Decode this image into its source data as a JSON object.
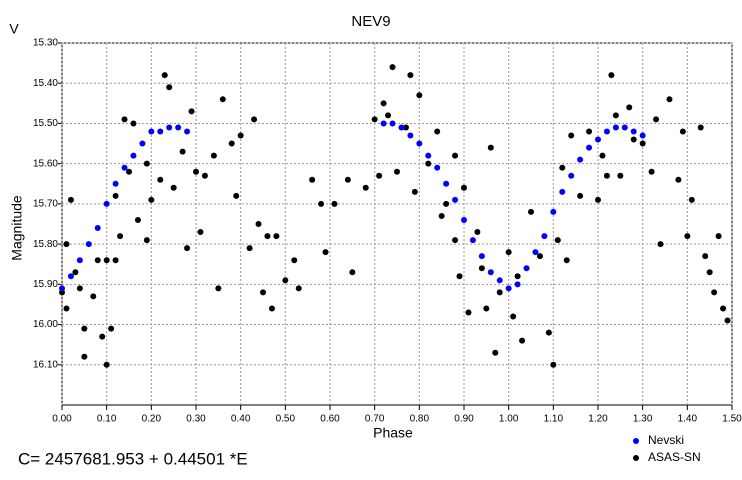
{
  "chart_data": {
    "type": "scatter",
    "title": "NEV9",
    "y_unit": "V",
    "xlabel": "Phase",
    "ylabel": "Magnitude",
    "footer": "C= 2457681.953 + 0.44501 *E",
    "xlim": [
      0,
      1.5
    ],
    "ylim": [
      15.3,
      16.2
    ],
    "y_inverted": true,
    "grid": true,
    "legend": "lower right",
    "xticks": [
      {
        "value": 0,
        "label": "0.00"
      },
      {
        "value": 0.1,
        "label": "0.10"
      },
      {
        "value": 0.2,
        "label": "0.20"
      },
      {
        "value": 0.3,
        "label": "0.30"
      },
      {
        "value": 0.4,
        "label": "0.40"
      },
      {
        "value": 0.5,
        "label": "0.50"
      },
      {
        "value": 0.6,
        "label": "0.60"
      },
      {
        "value": 0.7,
        "label": "0.70"
      },
      {
        "value": 0.8,
        "label": "0.80"
      },
      {
        "value": 0.9,
        "label": "0.90"
      },
      {
        "value": 1.0,
        "label": "1.00"
      },
      {
        "value": 1.1,
        "label": "1.10"
      },
      {
        "value": 1.2,
        "label": "1.20"
      },
      {
        "value": 1.3,
        "label": "1.30"
      },
      {
        "value": 1.4,
        "label": "1.40"
      },
      {
        "value": 1.5,
        "label": "1.50"
      }
    ],
    "yticks": [
      {
        "value": 15.3,
        "label": "15.30"
      },
      {
        "value": 15.4,
        "label": "15.40"
      },
      {
        "value": 15.5,
        "label": "15.50"
      },
      {
        "value": 15.6,
        "label": "15.60"
      },
      {
        "value": 15.7,
        "label": "15.70"
      },
      {
        "value": 15.8,
        "label": "15.80"
      },
      {
        "value": 15.9,
        "label": "15.90"
      },
      {
        "value": 16.0,
        "label": "16.00"
      },
      {
        "value": 16.1,
        "label": "16.10"
      }
    ],
    "series": [
      {
        "name": "Nevski",
        "color": "#0000ff",
        "x": [
          0.0,
          0.02,
          0.04,
          0.06,
          0.08,
          0.1,
          0.12,
          0.14,
          0.16,
          0.18,
          0.2,
          0.22,
          0.24,
          0.26,
          0.28,
          0.72,
          0.74,
          0.76,
          0.78,
          0.8,
          0.82,
          0.84,
          0.86,
          0.88,
          0.9,
          0.92,
          0.94,
          0.96,
          0.98,
          1.0,
          1.02,
          1.04,
          1.06,
          1.08,
          1.1,
          1.12,
          1.14,
          1.16,
          1.18,
          1.2,
          1.22,
          1.24,
          1.26,
          1.28,
          1.3
        ],
        "values": [
          15.91,
          15.88,
          15.84,
          15.8,
          15.76,
          15.7,
          15.65,
          15.61,
          15.58,
          15.55,
          15.52,
          15.52,
          15.51,
          15.51,
          15.52,
          15.5,
          15.5,
          15.51,
          15.53,
          15.55,
          15.58,
          15.61,
          15.65,
          15.69,
          15.74,
          15.79,
          15.83,
          15.87,
          15.89,
          15.91,
          15.9,
          15.86,
          15.82,
          15.78,
          15.72,
          15.67,
          15.63,
          15.59,
          15.56,
          15.54,
          15.52,
          15.51,
          15.51,
          15.52,
          15.53
        ]
      },
      {
        "name": "ASAS-SN",
        "color": "#000000",
        "x": [
          0.0,
          0.01,
          0.01,
          0.02,
          0.03,
          0.04,
          0.05,
          0.05,
          0.07,
          0.08,
          0.09,
          0.1,
          0.1,
          0.11,
          0.12,
          0.12,
          0.13,
          0.14,
          0.15,
          0.16,
          0.17,
          0.19,
          0.19,
          0.2,
          0.22,
          0.23,
          0.24,
          0.25,
          0.27,
          0.28,
          0.29,
          0.3,
          0.31,
          0.32,
          0.34,
          0.35,
          0.36,
          0.38,
          0.39,
          0.4,
          0.42,
          0.43,
          0.44,
          0.45,
          0.46,
          0.47,
          0.48,
          0.5,
          0.52,
          0.53,
          0.56,
          0.58,
          0.59,
          0.61,
          0.64,
          0.65,
          0.68,
          0.7,
          0.71,
          0.72,
          0.73,
          0.74,
          0.75,
          0.77,
          0.78,
          0.79,
          0.8,
          0.82,
          0.84,
          0.85,
          0.86,
          0.88,
          0.88,
          0.89,
          0.9,
          0.91,
          0.93,
          0.94,
          0.95,
          0.96,
          0.97,
          0.98,
          1.0,
          1.01,
          1.02,
          1.03,
          1.05,
          1.07,
          1.09,
          1.1,
          1.11,
          1.12,
          1.13,
          1.14,
          1.16,
          1.18,
          1.2,
          1.21,
          1.22,
          1.23,
          1.24,
          1.25,
          1.27,
          1.28,
          1.3,
          1.32,
          1.33,
          1.34,
          1.36,
          1.38,
          1.39,
          1.4,
          1.41,
          1.43,
          1.44,
          1.45,
          1.46,
          1.47,
          1.48,
          1.49
        ],
        "values": [
          15.92,
          15.96,
          15.8,
          15.69,
          15.87,
          15.91,
          16.01,
          16.08,
          15.93,
          15.84,
          16.03,
          16.1,
          15.84,
          16.01,
          15.84,
          15.68,
          15.78,
          15.49,
          15.62,
          15.5,
          15.74,
          15.79,
          15.6,
          15.69,
          15.64,
          15.38,
          15.41,
          15.66,
          15.57,
          15.81,
          15.47,
          15.62,
          15.77,
          15.63,
          15.58,
          15.91,
          15.44,
          15.55,
          15.68,
          15.53,
          15.81,
          15.49,
          15.75,
          15.92,
          15.78,
          15.96,
          15.78,
          15.89,
          15.84,
          15.91,
          15.64,
          15.7,
          15.82,
          15.7,
          15.64,
          15.87,
          15.66,
          15.49,
          15.63,
          15.45,
          15.48,
          15.36,
          15.62,
          15.51,
          15.38,
          15.67,
          15.43,
          15.6,
          15.52,
          15.73,
          15.7,
          15.79,
          15.58,
          15.88,
          15.66,
          15.97,
          15.77,
          15.86,
          15.96,
          15.56,
          16.07,
          15.92,
          15.82,
          15.98,
          15.88,
          16.04,
          15.72,
          15.83,
          16.02,
          16.1,
          15.79,
          15.61,
          15.84,
          15.53,
          15.68,
          15.52,
          15.69,
          15.58,
          15.63,
          15.38,
          15.48,
          15.63,
          15.46,
          15.54,
          15.55,
          15.62,
          15.49,
          15.8,
          15.44,
          15.64,
          15.52,
          15.78,
          15.69,
          15.51,
          15.83,
          15.87,
          15.92,
          15.78,
          15.96,
          15.99
        ]
      }
    ]
  }
}
